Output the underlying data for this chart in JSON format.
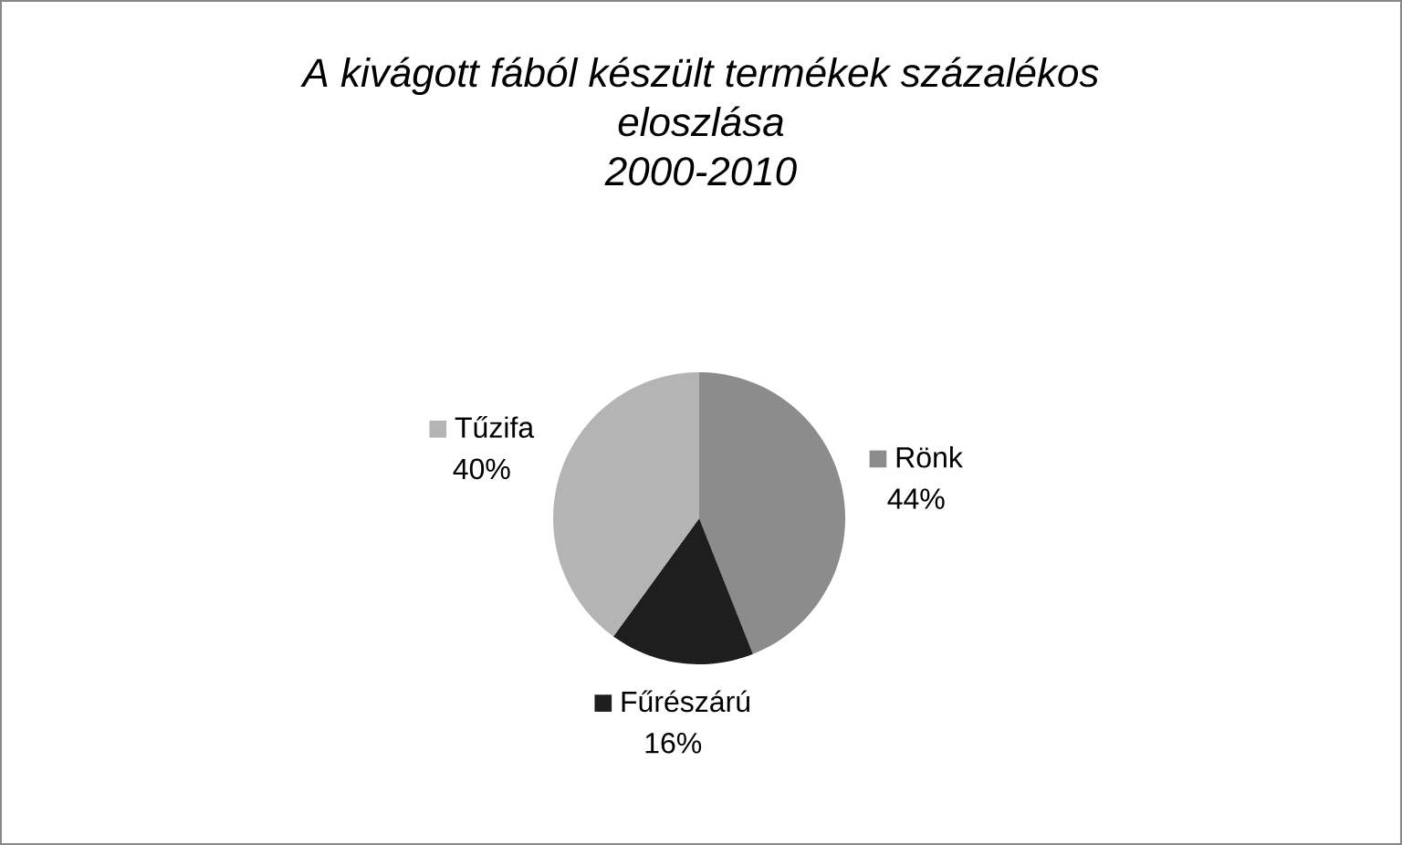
{
  "chart_data": {
    "type": "pie",
    "title": "A kivágott fából készült termékek százalékos eloszlása",
    "subtitle": "2000-2010",
    "categories": [
      "Rönk",
      "Fűrészárú",
      "Tűzifa"
    ],
    "values": [
      44,
      16,
      40
    ],
    "colors": [
      "#8c8c8c",
      "#1e1e1e",
      "#b4b4b4"
    ],
    "value_labels": [
      "44%",
      "16%",
      "40%"
    ],
    "legend": "center"
  }
}
